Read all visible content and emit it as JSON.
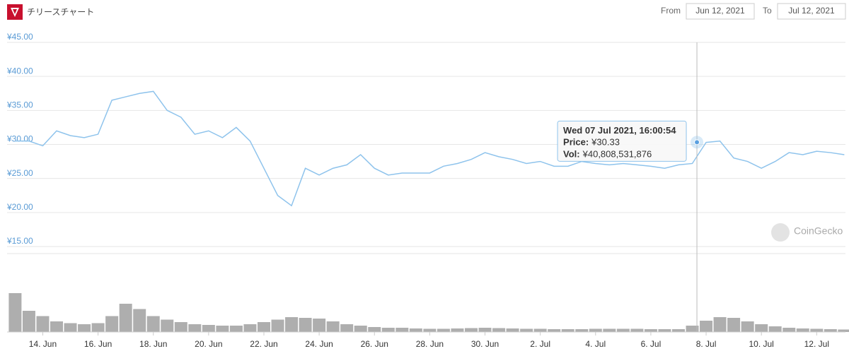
{
  "header": {
    "title": "チリースチャート",
    "from_label": "From",
    "from": "Jun 12, 2021",
    "to_label": "To",
    "to": "Jul 12, 2021"
  },
  "chart_data": {
    "type": "line",
    "color": "#8ec3ec",
    "volume_color": "#9a9a9a",
    "x": [
      "2021-06-13T00:00",
      "2021-06-13T12:00",
      "2021-06-14T00:00",
      "2021-06-14T12:00",
      "2021-06-15T00:00",
      "2021-06-15T12:00",
      "2021-06-16T00:00",
      "2021-06-16T12:00",
      "2021-06-17T00:00",
      "2021-06-17T12:00",
      "2021-06-18T00:00",
      "2021-06-18T12:00",
      "2021-06-19T00:00",
      "2021-06-19T12:00",
      "2021-06-20T00:00",
      "2021-06-20T12:00",
      "2021-06-21T00:00",
      "2021-06-21T12:00",
      "2021-06-22T00:00",
      "2021-06-22T12:00",
      "2021-06-23T00:00",
      "2021-06-23T12:00",
      "2021-06-24T00:00",
      "2021-06-24T12:00",
      "2021-06-25T00:00",
      "2021-06-25T12:00",
      "2021-06-26T00:00",
      "2021-06-26T12:00",
      "2021-06-27T00:00",
      "2021-06-27T12:00",
      "2021-06-28T00:00",
      "2021-06-28T12:00",
      "2021-06-29T00:00",
      "2021-06-29T12:00",
      "2021-06-30T00:00",
      "2021-06-30T12:00",
      "2021-07-01T00:00",
      "2021-07-01T12:00",
      "2021-07-02T00:00",
      "2021-07-02T12:00",
      "2021-07-03T00:00",
      "2021-07-03T12:00",
      "2021-07-04T00:00",
      "2021-07-04T12:00",
      "2021-07-05T00:00",
      "2021-07-05T12:00",
      "2021-07-06T00:00",
      "2021-07-06T12:00",
      "2021-07-07T00:00",
      "2021-07-07T12:00",
      "2021-07-08T00:00",
      "2021-07-08T12:00",
      "2021-07-09T00:00",
      "2021-07-09T12:00",
      "2021-07-10T00:00",
      "2021-07-10T12:00",
      "2021-07-11T00:00",
      "2021-07-11T12:00",
      "2021-07-12T00:00",
      "2021-07-12T12:00",
      "2021-07-13T00:00"
    ],
    "values": [
      30.5,
      30.5,
      29.8,
      32.0,
      31.3,
      31.0,
      31.5,
      36.5,
      37.0,
      37.5,
      37.8,
      35.0,
      34.0,
      31.5,
      32.0,
      31.0,
      32.5,
      30.5,
      26.5,
      22.5,
      21.0,
      26.5,
      25.5,
      26.5,
      27.0,
      28.5,
      26.5,
      25.5,
      25.8,
      25.8,
      25.8,
      26.8,
      27.2,
      27.8,
      28.8,
      28.2,
      27.8,
      27.2,
      27.5,
      26.8,
      26.8,
      27.5,
      27.2,
      27.0,
      27.2,
      27.0,
      26.8,
      26.5,
      27.0,
      27.2,
      30.3,
      30.5,
      28.0,
      27.5,
      26.5,
      27.5,
      28.8,
      28.5,
      29.0,
      28.8,
      28.5
    ],
    "volume_values": [
      110000000000.0,
      60000000000.0,
      45000000000.0,
      30000000000.0,
      25000000000.0,
      22000000000.0,
      25000000000.0,
      45000000000.0,
      80000000000.0,
      65000000000.0,
      45000000000.0,
      35000000000.0,
      28000000000.0,
      22000000000.0,
      20000000000.0,
      18000000000.0,
      18000000000.0,
      22000000000.0,
      28000000000.0,
      35000000000.0,
      42000000000.0,
      40000000000.0,
      38000000000.0,
      30000000000.0,
      22000000000.0,
      18000000000.0,
      14000000000.0,
      12000000000.0,
      12000000000.0,
      10000000000.0,
      9000000000.0,
      9000000000.0,
      10000000000.0,
      11000000000.0,
      12000000000.0,
      11000000000.0,
      10000000000.0,
      9000000000.0,
      9000000000.0,
      8000000000.0,
      8000000000.0,
      8000000000.0,
      9000000000.0,
      9000000000.0,
      9000000000.0,
      9000000000.0,
      8000000000.0,
      8000000000.0,
      8000000000.0,
      18000000000.0,
      32000000000.0,
      42000000000.0,
      40000000000.0,
      30000000000.0,
      22000000000.0,
      16000000000.0,
      12000000000.0,
      10000000000.0,
      9000000000.0,
      8000000000.0,
      7000000000.0
    ],
    "xlim": [
      "2021-06-12T17:00",
      "2021-07-13T01:00"
    ],
    "xticks": [
      {
        "value": "2021-06-14T00:00",
        "label": "14. Jun"
      },
      {
        "value": "2021-06-16T00:00",
        "label": "16. Jun"
      },
      {
        "value": "2021-06-18T00:00",
        "label": "18. Jun"
      },
      {
        "value": "2021-06-20T00:00",
        "label": "20. Jun"
      },
      {
        "value": "2021-06-22T00:00",
        "label": "22. Jun"
      },
      {
        "value": "2021-06-24T00:00",
        "label": "24. Jun"
      },
      {
        "value": "2021-06-26T00:00",
        "label": "26. Jun"
      },
      {
        "value": "2021-06-28T00:00",
        "label": "28. Jun"
      },
      {
        "value": "2021-06-30T00:00",
        "label": "30. Jun"
      },
      {
        "value": "2021-07-02T00:00",
        "label": "2. Jul"
      },
      {
        "value": "2021-07-04T00:00",
        "label": "4. Jul"
      },
      {
        "value": "2021-07-06T00:00",
        "label": "6. Jul"
      },
      {
        "value": "2021-07-08T00:00",
        "label": "8. Jul"
      },
      {
        "value": "2021-07-10T00:00",
        "label": "10. Jul"
      },
      {
        "value": "2021-07-12T00:00",
        "label": "12. Jul"
      }
    ],
    "ylim": [
      15,
      45
    ],
    "yticks": [
      {
        "value": 45,
        "label": "¥45.00"
      },
      {
        "value": 40,
        "label": "¥40.00"
      },
      {
        "value": 35,
        "label": "¥35.00"
      },
      {
        "value": 30,
        "label": "¥30.00"
      },
      {
        "value": 25,
        "label": "¥25.00"
      },
      {
        "value": 20,
        "label": "¥20.00"
      },
      {
        "value": 15,
        "label": "¥15.00"
      }
    ],
    "y2lim": [
      0,
      200000000000.0
    ],
    "grid": true,
    "watermark": "CoinGecko",
    "tooltip": {
      "title": "Wed 07 Jul 2021, 16:00:54",
      "x": "2021-07-07T16:00:54",
      "price_name": "Price:",
      "price": 30.33,
      "price_label": "¥30.33",
      "vol_name": "Vol:",
      "volume": 40808531876,
      "volume_label": "¥40,808,531,876"
    }
  }
}
